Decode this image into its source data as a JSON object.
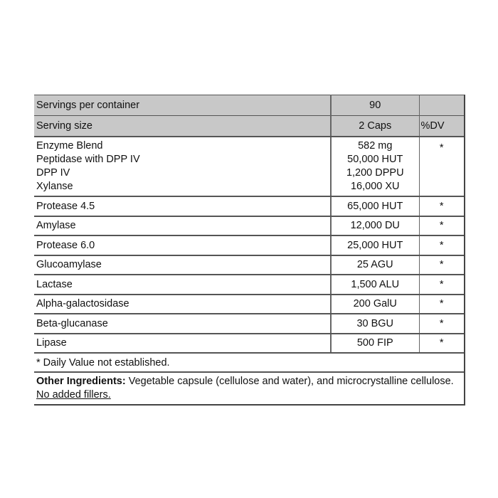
{
  "servings": {
    "label": "Servings per container",
    "value": "90"
  },
  "serving_size": {
    "label": "Serving size",
    "value": "2 Caps",
    "dv_header": "%DV"
  },
  "blend": {
    "names": [
      "Enzyme Blend",
      "Peptidase with DPP IV",
      "DPP IV",
      "Xylanse"
    ],
    "amounts": [
      "582 mg",
      "50,000 HUT",
      "1,200 DPPU",
      "16,000 XU"
    ],
    "dv": "*"
  },
  "rows": [
    {
      "name": "Protease 4.5",
      "amount": "65,000 HUT",
      "dv": "*"
    },
    {
      "name": "Amylase",
      "amount": "12,000 DU",
      "dv": "*"
    },
    {
      "name": "Protease 6.0",
      "amount": "25,000 HUT",
      "dv": "*"
    },
    {
      "name": "Glucoamylase",
      "amount": "25 AGU",
      "dv": "*"
    },
    {
      "name": "Lactase",
      "amount": "1,500 ALU",
      "dv": "*"
    },
    {
      "name": "Alpha-galactosidase",
      "amount": "200 GalU",
      "dv": "*"
    },
    {
      "name": "Beta-glucanase",
      "amount": "30 BGU",
      "dv": "*"
    },
    {
      "name": "Lipase",
      "amount": "500 FIP",
      "dv": "*"
    }
  ],
  "footnote": "* Daily Value not established.",
  "other": {
    "label": "Other Ingredients:",
    "text": " Vegetable capsule (cellulose and water), and microcrystalline cellulose. ",
    "underlined": "No added fillers."
  }
}
